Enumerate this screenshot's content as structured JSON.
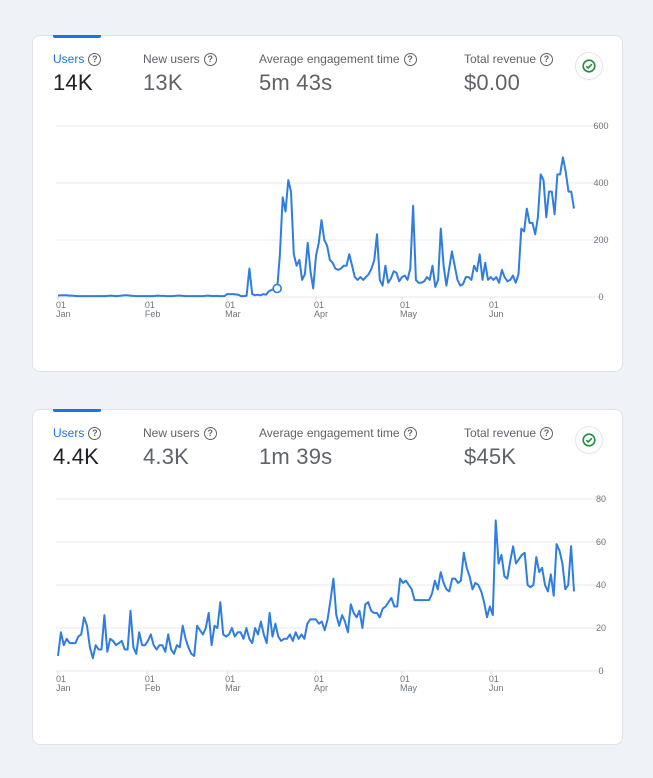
{
  "cards": [
    {
      "metrics": [
        {
          "label": "Users",
          "value": "14K",
          "active": true
        },
        {
          "label": "New users",
          "value": "13K",
          "active": false
        },
        {
          "label": "Average engagement time",
          "value": "5m 43s",
          "active": false
        },
        {
          "label": "Total revenue",
          "value": "$0.00",
          "active": false
        }
      ],
      "status_icon": "check-circle-icon"
    },
    {
      "metrics": [
        {
          "label": "Users",
          "value": "4.4K",
          "active": true
        },
        {
          "label": "New users",
          "value": "4.3K",
          "active": false
        },
        {
          "label": "Average engagement time",
          "value": "1m 39s",
          "active": false
        },
        {
          "label": "Total revenue",
          "value": "$45K",
          "active": false
        }
      ],
      "status_icon": "check-circle-icon"
    }
  ],
  "colors": {
    "accent": "#1a73e8",
    "line": "#2f7de1",
    "check": "#1e8e3e"
  },
  "chart_data": [
    {
      "type": "line",
      "title": "Users",
      "xlabel": "",
      "ylabel": "",
      "x_ticks": [
        {
          "day": "01",
          "month": "Jan"
        },
        {
          "day": "01",
          "month": "Feb"
        },
        {
          "day": "01",
          "month": "Mar"
        },
        {
          "day": "01",
          "month": "Apr"
        },
        {
          "day": "01",
          "month": "May"
        },
        {
          "day": "01",
          "month": "Jun"
        }
      ],
      "y_ticks": [
        "0",
        "200",
        "400",
        "600"
      ],
      "ylim": [
        0,
        600
      ],
      "grid": true,
      "legend": "none",
      "y_axis_side": "right",
      "highlight_index": 79,
      "series": [
        {
          "name": "Users",
          "values": [
            5,
            6,
            6,
            6,
            5,
            5,
            4,
            3,
            3,
            3,
            3,
            3,
            3,
            3,
            3,
            3,
            3,
            3,
            4,
            5,
            4,
            3,
            4,
            5,
            6,
            6,
            5,
            4,
            3,
            3,
            3,
            3,
            3,
            3,
            3,
            4,
            5,
            4,
            4,
            3,
            3,
            3,
            4,
            5,
            5,
            4,
            3,
            3,
            3,
            3,
            3,
            3,
            3,
            4,
            5,
            4,
            3,
            4,
            3,
            3,
            3,
            10,
            10,
            10,
            9,
            8,
            3,
            3,
            5,
            100,
            10,
            6,
            8,
            6,
            10,
            8,
            20,
            25,
            28,
            30,
            150,
            350,
            300,
            410,
            370,
            150,
            110,
            130,
            60,
            80,
            190,
            90,
            30,
            145,
            190,
            270,
            200,
            180,
            130,
            120,
            100,
            95,
            100,
            110,
            110,
            150,
            110,
            70,
            60,
            70,
            60,
            70,
            80,
            100,
            130,
            220,
            60,
            40,
            110,
            50,
            65,
            90,
            85,
            55,
            70,
            75,
            60,
            100,
            320,
            60,
            50,
            50,
            55,
            70,
            60,
            110,
            35,
            60,
            240,
            110,
            40,
            100,
            160,
            110,
            60,
            40,
            45,
            70,
            70,
            60,
            110,
            90,
            150,
            60,
            120,
            60,
            70,
            60,
            70,
            50,
            95,
            70,
            55,
            60,
            75,
            50,
            80,
            240,
            230,
            310,
            260,
            260,
            220,
            280,
            430,
            410,
            280,
            370,
            370,
            290,
            430,
            430,
            490,
            440,
            370,
            370,
            310
          ]
        }
      ]
    },
    {
      "type": "line",
      "title": "Users",
      "xlabel": "",
      "ylabel": "",
      "x_ticks": [
        {
          "day": "01",
          "month": "Jan"
        },
        {
          "day": "01",
          "month": "Feb"
        },
        {
          "day": "01",
          "month": "Mar"
        },
        {
          "day": "01",
          "month": "Apr"
        },
        {
          "day": "01",
          "month": "May"
        },
        {
          "day": "01",
          "month": "Jun"
        }
      ],
      "y_ticks": [
        "0",
        "20",
        "40",
        "60",
        "80"
      ],
      "ylim": [
        0,
        80
      ],
      "grid": true,
      "legend": "none",
      "y_axis_side": "right",
      "series": [
        {
          "name": "Users",
          "values": [
            7,
            18,
            12,
            15,
            13,
            13,
            13,
            16,
            17,
            25,
            21,
            11,
            6,
            12,
            10,
            10,
            26,
            9,
            15,
            14,
            12,
            13,
            14,
            10,
            10,
            28,
            11,
            8,
            18,
            12,
            12,
            14,
            17,
            12,
            10,
            12,
            12,
            9,
            17,
            10,
            8,
            12,
            11,
            21,
            15,
            11,
            8,
            7,
            21,
            19,
            17,
            20,
            27,
            12,
            21,
            20,
            32,
            17,
            16,
            17,
            20,
            16,
            18,
            18,
            15,
            20,
            15,
            13,
            20,
            17,
            23,
            17,
            13,
            27,
            16,
            22,
            16,
            14,
            15,
            15,
            17,
            14,
            18,
            15,
            17,
            15,
            22,
            24,
            24,
            24,
            22,
            23,
            19,
            24,
            33,
            43,
            26,
            21,
            26,
            23,
            18,
            31,
            27,
            25,
            28,
            20,
            31,
            32,
            28,
            27,
            27,
            25,
            29,
            30,
            32,
            34,
            30,
            30,
            43,
            41,
            42,
            40,
            38,
            33,
            33,
            33,
            33,
            33,
            33,
            36,
            42,
            38,
            46,
            41,
            38,
            37,
            43,
            43,
            41,
            42,
            55,
            48,
            44,
            38,
            41,
            40,
            37,
            32,
            25,
            30,
            26,
            70,
            50,
            54,
            44,
            43,
            51,
            58,
            50,
            52,
            54,
            55,
            40,
            39,
            40,
            53,
            46,
            48,
            40,
            37,
            45,
            35,
            59,
            56,
            50,
            38,
            40,
            58,
            37
          ]
        }
      ]
    }
  ]
}
